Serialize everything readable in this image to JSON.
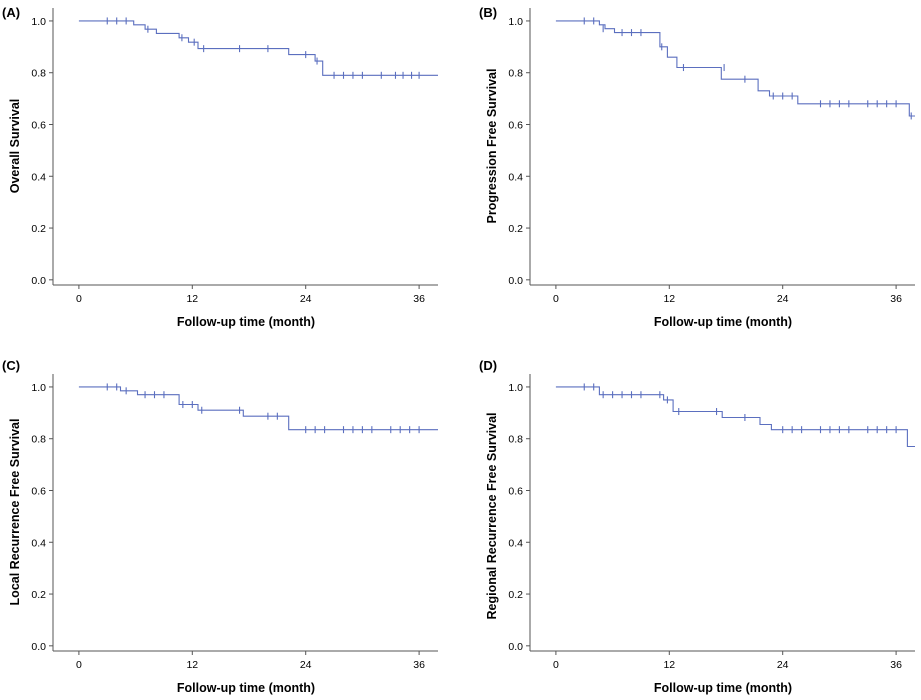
{
  "colors": {
    "curve": "#5b6fbf",
    "axis": "#555555"
  },
  "chart_data": [
    {
      "type": "line",
      "panel_label": "(A)",
      "xlabel": "Follow-up time (month)",
      "ylabel": "Overall Survival",
      "xlim": [
        -2,
        38
      ],
      "ylim": [
        -0.02,
        1.05
      ],
      "xticks": [
        0,
        12,
        24,
        36
      ],
      "yticks": [
        "0.0",
        "0.2",
        "0.4",
        "0.6",
        "0.8",
        "1.0"
      ],
      "grid": false,
      "series": [
        {
          "steps": [
            [
              0,
              1.0
            ],
            [
              5.8,
              0.985
            ],
            [
              7,
              0.968
            ],
            [
              8.2,
              0.952
            ],
            [
              10.6,
              0.935
            ],
            [
              11.6,
              0.918
            ],
            [
              12.6,
              0.893
            ],
            [
              22.2,
              0.87
            ],
            [
              25,
              0.845
            ],
            [
              25.8,
              0.79
            ],
            [
              38,
              0.79
            ]
          ],
          "censored": [
            [
              3,
              1.0
            ],
            [
              4,
              1.0
            ],
            [
              5,
              1.0
            ],
            [
              7.3,
              0.968
            ],
            [
              10.9,
              0.935
            ],
            [
              12.2,
              0.918
            ],
            [
              13.2,
              0.893
            ],
            [
              17,
              0.893
            ],
            [
              20,
              0.893
            ],
            [
              24,
              0.87
            ],
            [
              25.2,
              0.845
            ],
            [
              27,
              0.79
            ],
            [
              28,
              0.79
            ],
            [
              29,
              0.79
            ],
            [
              30,
              0.79
            ],
            [
              32,
              0.79
            ],
            [
              33.5,
              0.79
            ],
            [
              34.3,
              0.79
            ],
            [
              35.2,
              0.79
            ],
            [
              36,
              0.79
            ]
          ]
        }
      ]
    },
    {
      "type": "line",
      "panel_label": "(B)",
      "xlabel": "Follow-up time (month)",
      "ylabel": "Progression Free Survival",
      "xlim": [
        -2,
        38
      ],
      "ylim": [
        -0.02,
        1.05
      ],
      "xticks": [
        0,
        12,
        24,
        36
      ],
      "yticks": [
        "0.0",
        "0.2",
        "0.4",
        "0.6",
        "0.8",
        "1.0"
      ],
      "grid": false,
      "series": [
        {
          "steps": [
            [
              0,
              1.0
            ],
            [
              4.6,
              0.985
            ],
            [
              5.2,
              0.97
            ],
            [
              6.2,
              0.955
            ],
            [
              11,
              0.9
            ],
            [
              11.8,
              0.86
            ],
            [
              12.8,
              0.82
            ],
            [
              17.5,
              0.775
            ],
            [
              21.4,
              0.73
            ],
            [
              22.6,
              0.71
            ],
            [
              25.6,
              0.68
            ],
            [
              37.4,
              0.633
            ],
            [
              38,
              0.633
            ]
          ],
          "censored": [
            [
              3,
              1.0
            ],
            [
              4,
              1.0
            ],
            [
              5,
              0.97
            ],
            [
              7,
              0.955
            ],
            [
              8,
              0.955
            ],
            [
              9,
              0.955
            ],
            [
              11.2,
              0.9
            ],
            [
              13.5,
              0.82
            ],
            [
              17.8,
              0.82
            ],
            [
              20,
              0.775
            ],
            [
              23,
              0.71
            ],
            [
              24,
              0.71
            ],
            [
              25,
              0.71
            ],
            [
              28,
              0.68
            ],
            [
              29,
              0.68
            ],
            [
              30,
              0.68
            ],
            [
              31,
              0.68
            ],
            [
              33,
              0.68
            ],
            [
              34,
              0.68
            ],
            [
              35,
              0.68
            ],
            [
              36,
              0.68
            ],
            [
              37.6,
              0.633
            ]
          ]
        }
      ]
    },
    {
      "type": "line",
      "panel_label": "(C)",
      "xlabel": "Follow-up time (month)",
      "ylabel": "Local Recurrence Free Survival",
      "xlim": [
        -2,
        38
      ],
      "ylim": [
        -0.02,
        1.05
      ],
      "xticks": [
        0,
        12,
        24,
        36
      ],
      "yticks": [
        "0.0",
        "0.2",
        "0.4",
        "0.6",
        "0.8",
        "1.0"
      ],
      "grid": false,
      "series": [
        {
          "steps": [
            [
              0,
              1.0
            ],
            [
              4.4,
              0.985
            ],
            [
              6.2,
              0.97
            ],
            [
              10.6,
              0.932
            ],
            [
              12.6,
              0.91
            ],
            [
              17.4,
              0.887
            ],
            [
              22.2,
              0.835
            ],
            [
              38,
              0.835
            ]
          ],
          "censored": [
            [
              3,
              1.0
            ],
            [
              4,
              1.0
            ],
            [
              5,
              0.985
            ],
            [
              7,
              0.97
            ],
            [
              8,
              0.97
            ],
            [
              9,
              0.97
            ],
            [
              11,
              0.932
            ],
            [
              12,
              0.932
            ],
            [
              13,
              0.91
            ],
            [
              17,
              0.91
            ],
            [
              20,
              0.887
            ],
            [
              21,
              0.887
            ],
            [
              24,
              0.835
            ],
            [
              25,
              0.835
            ],
            [
              26,
              0.835
            ],
            [
              28,
              0.835
            ],
            [
              29,
              0.835
            ],
            [
              30,
              0.835
            ],
            [
              31,
              0.835
            ],
            [
              33,
              0.835
            ],
            [
              34,
              0.835
            ],
            [
              35,
              0.835
            ],
            [
              36,
              0.835
            ]
          ]
        }
      ]
    },
    {
      "type": "line",
      "panel_label": "(D)",
      "xlabel": "Follow-up time (month)",
      "ylabel": "Regional Recurrence Free Survival",
      "xlim": [
        -2,
        38
      ],
      "ylim": [
        -0.02,
        1.05
      ],
      "xticks": [
        0,
        12,
        24,
        36
      ],
      "yticks": [
        "0.0",
        "0.2",
        "0.4",
        "0.6",
        "0.8",
        "1.0"
      ],
      "grid": false,
      "series": [
        {
          "steps": [
            [
              0,
              1.0
            ],
            [
              4.6,
              0.97
            ],
            [
              11.4,
              0.95
            ],
            [
              12.4,
              0.905
            ],
            [
              17.6,
              0.882
            ],
            [
              21.6,
              0.855
            ],
            [
              22.8,
              0.835
            ],
            [
              37.2,
              0.77
            ],
            [
              38,
              0.77
            ]
          ],
          "censored": [
            [
              3,
              1.0
            ],
            [
              4,
              1.0
            ],
            [
              5,
              0.97
            ],
            [
              6,
              0.97
            ],
            [
              7,
              0.97
            ],
            [
              8,
              0.97
            ],
            [
              9,
              0.97
            ],
            [
              11,
              0.97
            ],
            [
              11.8,
              0.95
            ],
            [
              13,
              0.905
            ],
            [
              17,
              0.905
            ],
            [
              20,
              0.882
            ],
            [
              24,
              0.835
            ],
            [
              25,
              0.835
            ],
            [
              26,
              0.835
            ],
            [
              28,
              0.835
            ],
            [
              29,
              0.835
            ],
            [
              30,
              0.835
            ],
            [
              31,
              0.835
            ],
            [
              33,
              0.835
            ],
            [
              34,
              0.835
            ],
            [
              35,
              0.835
            ],
            [
              36,
              0.835
            ]
          ]
        }
      ]
    }
  ]
}
